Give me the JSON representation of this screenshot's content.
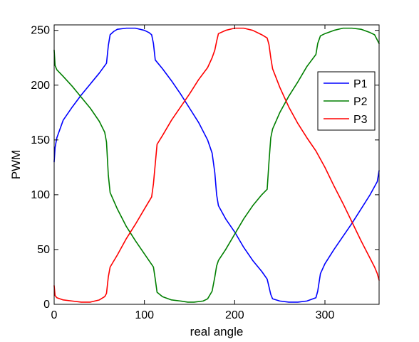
{
  "chart_data": {
    "type": "line",
    "title": "",
    "xlabel": "real angle",
    "ylabel": "PWM",
    "xlim": [
      0,
      360
    ],
    "ylim": [
      0,
      255
    ],
    "xticks": [
      0,
      100,
      200,
      300
    ],
    "yticks": [
      0,
      50,
      100,
      150,
      200,
      250
    ],
    "grid": false,
    "legend": "right",
    "series": [
      {
        "name": "P1",
        "color": "#0000ff",
        "x": [
          0,
          1,
          3,
          10,
          20,
          30,
          40,
          50,
          58,
          60,
          62,
          66,
          70,
          80,
          85,
          90,
          100,
          105,
          108,
          110,
          112,
          120,
          130,
          140,
          150,
          160,
          170,
          175,
          178,
          180,
          182,
          190,
          200,
          210,
          220,
          230,
          236,
          238,
          240,
          242,
          250,
          260,
          265,
          270,
          280,
          290,
          292,
          295,
          300,
          310,
          320,
          330,
          340,
          350,
          358,
          360
        ],
        "y": [
          130,
          143,
          152,
          168,
          180,
          191,
          201,
          211,
          220,
          236,
          246,
          249,
          251,
          252,
          252,
          252,
          250,
          248,
          246,
          238,
          223,
          215,
          204,
          192,
          179,
          166,
          150,
          138,
          120,
          100,
          90,
          78,
          66,
          52,
          40,
          30,
          23,
          16,
          9,
          5,
          3,
          2,
          2,
          2,
          3,
          6,
          12,
          28,
          37,
          50,
          62,
          74,
          87,
          100,
          112,
          122
        ]
      },
      {
        "name": "P2",
        "color": "#007f00",
        "x": [
          0,
          1,
          3,
          10,
          20,
          30,
          40,
          50,
          56,
          58,
          60,
          62,
          70,
          80,
          90,
          100,
          110,
          112,
          114,
          120,
          130,
          140,
          148,
          155,
          165,
          170,
          175,
          178,
          180,
          182,
          190,
          200,
          210,
          220,
          230,
          236,
          238,
          240,
          242,
          250,
          260,
          270,
          280,
          290,
          292,
          295,
          300,
          310,
          320,
          325,
          330,
          340,
          350,
          355,
          360
        ],
        "y": [
          232,
          218,
          214,
          208,
          199,
          189,
          179,
          167,
          157,
          148,
          118,
          102,
          87,
          71,
          58,
          46,
          34,
          23,
          11,
          7,
          4,
          3,
          2,
          2,
          3,
          5,
          12,
          25,
          35,
          40,
          50,
          64,
          78,
          90,
          100,
          105,
          130,
          152,
          160,
          175,
          190,
          203,
          217,
          228,
          238,
          245,
          247,
          250,
          252,
          252,
          252,
          251,
          248,
          246,
          238
        ]
      },
      {
        "name": "P3",
        "color": "#ff0000",
        "x": [
          0,
          1,
          3,
          10,
          20,
          30,
          40,
          50,
          56,
          58,
          60,
          62,
          70,
          80,
          90,
          100,
          108,
          110,
          112,
          114,
          120,
          130,
          140,
          150,
          160,
          170,
          175,
          178,
          180,
          182,
          190,
          200,
          205,
          210,
          220,
          230,
          236,
          238,
          240,
          242,
          250,
          260,
          270,
          280,
          290,
          300,
          310,
          320,
          330,
          340,
          350,
          355,
          358,
          360
        ],
        "y": [
          17,
          8,
          6,
          4,
          3,
          2,
          2,
          4,
          7,
          10,
          25,
          34,
          45,
          60,
          73,
          87,
          98,
          110,
          128,
          146,
          154,
          168,
          180,
          192,
          205,
          216,
          225,
          232,
          240,
          247,
          250,
          252,
          252,
          252,
          250,
          246,
          243,
          237,
          225,
          215,
          198,
          180,
          165,
          152,
          140,
          125,
          108,
          92,
          75,
          58,
          42,
          34,
          28,
          22
        ]
      }
    ]
  }
}
